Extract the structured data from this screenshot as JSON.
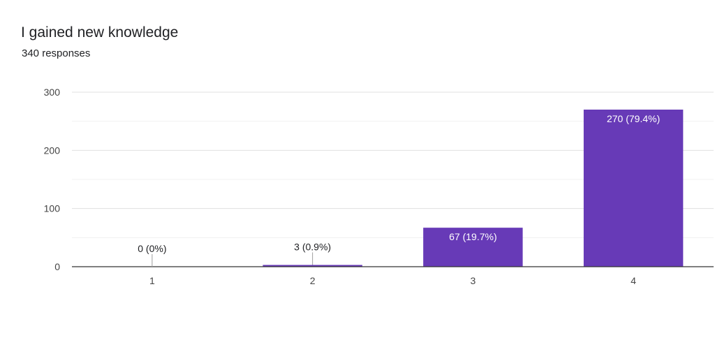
{
  "header": {
    "title": "I gained new knowledge",
    "subtitle": "340 responses"
  },
  "chart_data": {
    "type": "bar",
    "categories": [
      "1",
      "2",
      "3",
      "4"
    ],
    "values": [
      0,
      3,
      67,
      270
    ],
    "data_labels": [
      "0 (0%)",
      "3 (0.9%)",
      "67 (19.7%)",
      "270 (79.4%)"
    ],
    "title": "I gained new knowledge",
    "subtitle": "340 responses",
    "xlabel": "",
    "ylabel": "",
    "ylim": [
      0,
      300
    ],
    "yticks": [
      0,
      100,
      200,
      300
    ],
    "grid": true,
    "legend": "none",
    "bar_color": "#673ab7",
    "inside_label_color": "#ffffff",
    "outside_label_color": "#202124"
  }
}
